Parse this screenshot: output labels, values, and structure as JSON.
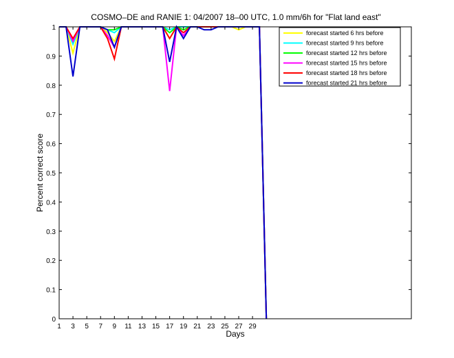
{
  "chart_data": {
    "type": "line",
    "title": "COSMO–DE and RANIE 1: 04/2007 18–00 UTC, 1.0 mm/6h for \"Flat land east\"",
    "xlabel": "Days",
    "ylabel": "Percent correct score",
    "xlim": [
      1,
      52
    ],
    "ylim": [
      0,
      1
    ],
    "xticks": [
      1,
      3,
      5,
      7,
      9,
      11,
      13,
      15,
      17,
      19,
      21,
      23,
      25,
      27,
      29
    ],
    "yticks": [
      0,
      0.1,
      0.2,
      0.3,
      0.4,
      0.5,
      0.6,
      0.7,
      0.8,
      0.9,
      1
    ],
    "ytick_labels": [
      "0",
      "0.1",
      "0.2",
      "0.3",
      "0.4",
      "0.5",
      "0.6",
      "0.7",
      "0.8",
      "0.9",
      "1"
    ],
    "grid": false,
    "legend_position": "top-right",
    "x": [
      1,
      2,
      3,
      4,
      5,
      6,
      7,
      8,
      9,
      10,
      11,
      12,
      13,
      14,
      15,
      16,
      17,
      18,
      19,
      20,
      21,
      22,
      23,
      24,
      25,
      26,
      27,
      28,
      29,
      30,
      31
    ],
    "series": [
      {
        "name": "forecast started 6 hrs before",
        "color": "#ffff00",
        "values": [
          1,
          1,
          0.91,
          1,
          1,
          1,
          1,
          0.98,
          0.95,
          1,
          1,
          1,
          1,
          1,
          1,
          1,
          0.96,
          1,
          0.99,
          1,
          1,
          1,
          1,
          1,
          1,
          1,
          0.99,
          1,
          1,
          1,
          0
        ]
      },
      {
        "name": "forecast started 9 hrs before",
        "color": "#00ffff",
        "values": [
          1,
          1,
          0.94,
          1,
          1,
          1,
          1,
          0.99,
          0.98,
          1,
          1,
          1,
          1,
          1,
          1,
          1,
          0.99,
          1,
          1,
          1,
          1,
          1,
          1,
          1,
          1,
          1,
          1,
          1,
          1,
          1,
          0
        ]
      },
      {
        "name": "forecast started 12 hrs before",
        "color": "#00ff00",
        "values": [
          1,
          1,
          0.95,
          1,
          1,
          1,
          1,
          0.99,
          0.99,
          1,
          1,
          1,
          1,
          1,
          1,
          1,
          0.98,
          1,
          0.99,
          1,
          1,
          1,
          1,
          1,
          1,
          1,
          1,
          1,
          1,
          1,
          0
        ]
      },
      {
        "name": "forecast started 15 hrs before",
        "color": "#ff00ff",
        "values": [
          1,
          1,
          0.95,
          1,
          1,
          1,
          1,
          0.97,
          0.93,
          1,
          1,
          1,
          1,
          1,
          1,
          1,
          0.78,
          1,
          0.97,
          1,
          1,
          1,
          1,
          1,
          1,
          1,
          1,
          1,
          1,
          1,
          0
        ]
      },
      {
        "name": "forecast started 18 hrs before",
        "color": "#ff0000",
        "values": [
          1,
          1,
          0.96,
          1,
          1,
          1,
          1,
          0.96,
          0.89,
          1,
          1,
          1,
          1,
          1,
          1,
          1,
          0.96,
          1,
          0.98,
          1,
          1,
          1,
          1,
          1,
          1,
          1,
          1,
          1,
          1,
          1,
          0
        ]
      },
      {
        "name": "forecast started 21 hrs before",
        "color": "#0000cc",
        "values": [
          1,
          1,
          0.83,
          1,
          1,
          1,
          1,
          0.99,
          0.93,
          1,
          1,
          1,
          1,
          1,
          1,
          1,
          0.88,
          1,
          0.96,
          1,
          1,
          0.99,
          0.99,
          1,
          1,
          1,
          1,
          1,
          1,
          1,
          0
        ]
      }
    ]
  }
}
